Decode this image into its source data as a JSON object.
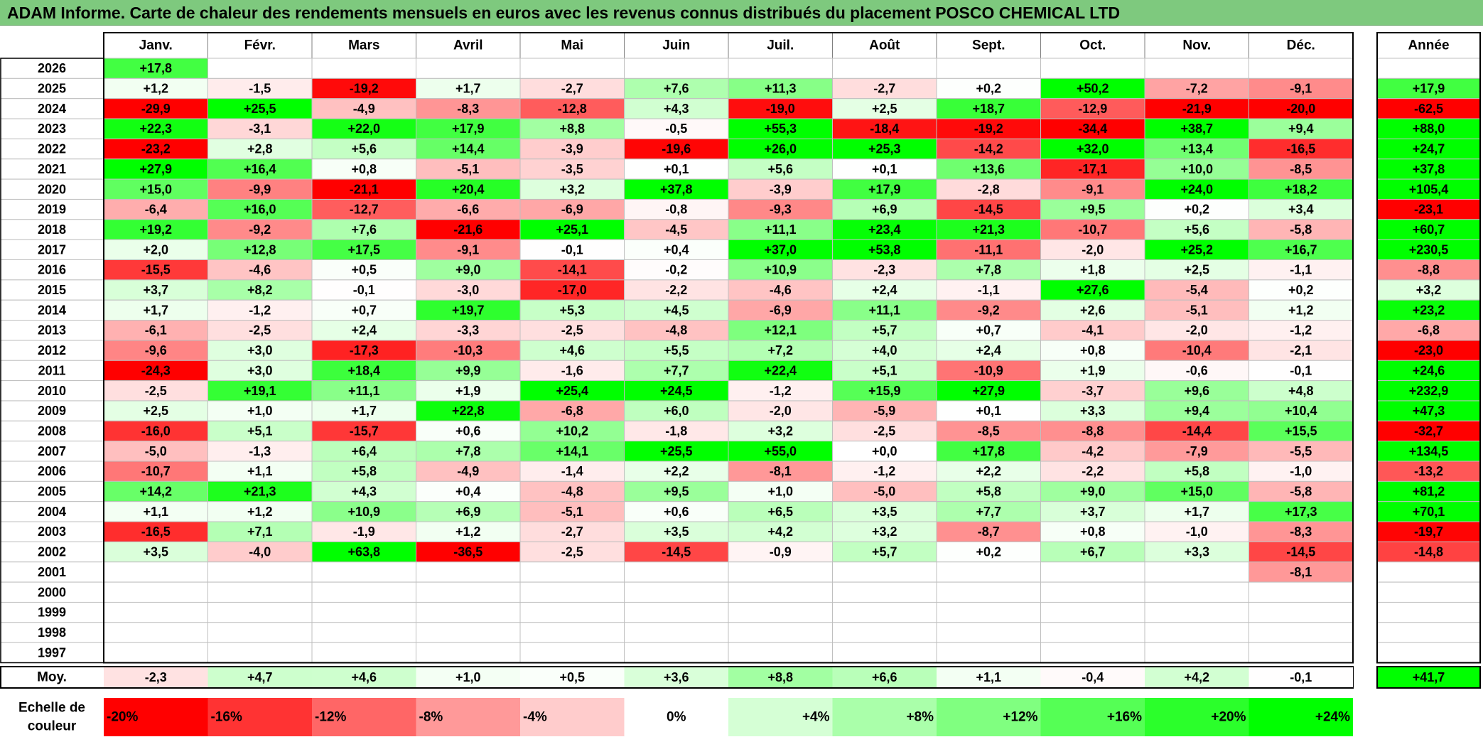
{
  "title": "ADAM Informe. Carte de chaleur des rendements mensuels en euros avec les revenus connus distribués du placement POSCO CHEMICAL LTD",
  "chart_data": {
    "type": "heatmap",
    "months": [
      "Janv.",
      "Févr.",
      "Mars",
      "Avril",
      "Mai",
      "Juin",
      "Juil.",
      "Août",
      "Sept.",
      "Oct.",
      "Nov.",
      "Déc."
    ],
    "year_header": "Année",
    "average_label": "Moy.",
    "scale_label": "Echelle de couleur",
    "rows": [
      {
        "year": "2026",
        "values": [
          "+17,8",
          "",
          "",
          "",
          "",
          "",
          "",
          "",
          "",
          "",
          "",
          ""
        ],
        "annual": ""
      },
      {
        "year": "2025",
        "values": [
          "+1,2",
          "-1,5",
          "-19,2",
          "+1,7",
          "-2,7",
          "+7,6",
          "+11,3",
          "-2,7",
          "+0,2",
          "+50,2",
          "-7,2",
          "-9,1"
        ],
        "annual": "+17,9"
      },
      {
        "year": "2024",
        "values": [
          "-29,9",
          "+25,5",
          "-4,9",
          "-8,3",
          "-12,8",
          "+4,3",
          "-19,0",
          "+2,5",
          "+18,7",
          "-12,9",
          "-21,9",
          "-20,0"
        ],
        "annual": "-62,5"
      },
      {
        "year": "2023",
        "values": [
          "+22,3",
          "-3,1",
          "+22,0",
          "+17,9",
          "+8,8",
          "-0,5",
          "+55,3",
          "-18,4",
          "-19,2",
          "-34,4",
          "+38,7",
          "+9,4"
        ],
        "annual": "+88,0"
      },
      {
        "year": "2022",
        "values": [
          "-23,2",
          "+2,8",
          "+5,6",
          "+14,4",
          "-3,9",
          "-19,6",
          "+26,0",
          "+25,3",
          "-14,2",
          "+32,0",
          "+13,4",
          "-16,5"
        ],
        "annual": "+24,7"
      },
      {
        "year": "2021",
        "values": [
          "+27,9",
          "+16,4",
          "+0,8",
          "-5,1",
          "-3,5",
          "+0,1",
          "+5,6",
          "+0,1",
          "+13,6",
          "-17,1",
          "+10,0",
          "-8,5"
        ],
        "annual": "+37,8"
      },
      {
        "year": "2020",
        "values": [
          "+15,0",
          "-9,9",
          "-21,1",
          "+20,4",
          "+3,2",
          "+37,8",
          "-3,9",
          "+17,9",
          "-2,8",
          "-9,1",
          "+24,0",
          "+18,2"
        ],
        "annual": "+105,4"
      },
      {
        "year": "2019",
        "values": [
          "-6,4",
          "+16,0",
          "-12,7",
          "-6,6",
          "-6,9",
          "-0,8",
          "-9,3",
          "+6,9",
          "-14,5",
          "+9,5",
          "+0,2",
          "+3,4"
        ],
        "annual": "-23,1"
      },
      {
        "year": "2018",
        "values": [
          "+19,2",
          "-9,2",
          "+7,6",
          "-21,6",
          "+25,1",
          "-4,5",
          "+11,1",
          "+23,4",
          "+21,3",
          "-10,7",
          "+5,6",
          "-5,8"
        ],
        "annual": "+60,7"
      },
      {
        "year": "2017",
        "values": [
          "+2,0",
          "+12,8",
          "+17,5",
          "-9,1",
          "-0,1",
          "+0,4",
          "+37,0",
          "+53,8",
          "-11,1",
          "-2,0",
          "+25,2",
          "+16,7"
        ],
        "annual": "+230,5"
      },
      {
        "year": "2016",
        "values": [
          "-15,5",
          "-4,6",
          "+0,5",
          "+9,0",
          "-14,1",
          "-0,2",
          "+10,9",
          "-2,3",
          "+7,8",
          "+1,8",
          "+2,5",
          "-1,1"
        ],
        "annual": "-8,8"
      },
      {
        "year": "2015",
        "values": [
          "+3,7",
          "+8,2",
          "-0,1",
          "-3,0",
          "-17,0",
          "-2,2",
          "-4,6",
          "+2,4",
          "-1,1",
          "+27,6",
          "-5,4",
          "+0,2"
        ],
        "annual": "+3,2"
      },
      {
        "year": "2014",
        "values": [
          "+1,7",
          "-1,2",
          "+0,7",
          "+19,7",
          "+5,3",
          "+4,5",
          "-6,9",
          "+11,1",
          "-9,2",
          "+2,6",
          "-5,1",
          "+1,2"
        ],
        "annual": "+23,2"
      },
      {
        "year": "2013",
        "values": [
          "-6,1",
          "-2,5",
          "+2,4",
          "-3,3",
          "-2,5",
          "-4,8",
          "+12,1",
          "+5,7",
          "+0,7",
          "-4,1",
          "-2,0",
          "-1,2"
        ],
        "annual": "-6,8"
      },
      {
        "year": "2012",
        "values": [
          "-9,6",
          "+3,0",
          "-17,3",
          "-10,3",
          "+4,6",
          "+5,5",
          "+7,2",
          "+4,0",
          "+2,4",
          "+0,8",
          "-10,4",
          "-2,1"
        ],
        "annual": "-23,0"
      },
      {
        "year": "2011",
        "values": [
          "-24,3",
          "+3,0",
          "+18,4",
          "+9,9",
          "-1,6",
          "+7,7",
          "+22,4",
          "+5,1",
          "-10,9",
          "+1,9",
          "-0,6",
          "-0,1"
        ],
        "annual": "+24,6"
      },
      {
        "year": "2010",
        "values": [
          "-2,5",
          "+19,1",
          "+11,1",
          "+1,9",
          "+25,4",
          "+24,5",
          "-1,2",
          "+15,9",
          "+27,9",
          "-3,7",
          "+9,6",
          "+4,8"
        ],
        "annual": "+232,9"
      },
      {
        "year": "2009",
        "values": [
          "+2,5",
          "+1,0",
          "+1,7",
          "+22,8",
          "-6,8",
          "+6,0",
          "-2,0",
          "-5,9",
          "+0,1",
          "+3,3",
          "+9,4",
          "+10,4"
        ],
        "annual": "+47,3"
      },
      {
        "year": "2008",
        "values": [
          "-16,0",
          "+5,1",
          "-15,7",
          "+0,6",
          "+10,2",
          "-1,8",
          "+3,2",
          "-2,5",
          "-8,5",
          "-8,8",
          "-14,4",
          "+15,5"
        ],
        "annual": "-32,7"
      },
      {
        "year": "2007",
        "values": [
          "-5,0",
          "-1,3",
          "+6,4",
          "+7,8",
          "+14,1",
          "+25,5",
          "+55,0",
          "+0,0",
          "+17,8",
          "-4,2",
          "-7,9",
          "-5,5"
        ],
        "annual": "+134,5"
      },
      {
        "year": "2006",
        "values": [
          "-10,7",
          "+1,1",
          "+5,8",
          "-4,9",
          "-1,4",
          "+2,2",
          "-8,1",
          "-1,2",
          "+2,2",
          "-2,2",
          "+5,8",
          "-1,0"
        ],
        "annual": "-13,2"
      },
      {
        "year": "2005",
        "values": [
          "+14,2",
          "+21,3",
          "+4,3",
          "+0,4",
          "-4,8",
          "+9,5",
          "+1,0",
          "-5,0",
          "+5,8",
          "+9,0",
          "+15,0",
          "-5,8"
        ],
        "annual": "+81,2"
      },
      {
        "year": "2004",
        "values": [
          "+1,1",
          "+1,2",
          "+10,9",
          "+6,9",
          "-5,1",
          "+0,6",
          "+6,5",
          "+3,5",
          "+7,7",
          "+3,7",
          "+1,7",
          "+17,3"
        ],
        "annual": "+70,1"
      },
      {
        "year": "2003",
        "values": [
          "-16,5",
          "+7,1",
          "-1,9",
          "+1,2",
          "-2,7",
          "+3,5",
          "+4,2",
          "+3,2",
          "-8,7",
          "+0,8",
          "-1,0",
          "-8,3"
        ],
        "annual": "-19,7"
      },
      {
        "year": "2002",
        "values": [
          "+3,5",
          "-4,0",
          "+63,8",
          "-36,5",
          "-2,5",
          "-14,5",
          "-0,9",
          "+5,7",
          "+0,2",
          "+6,7",
          "+3,3",
          "-14,5"
        ],
        "annual": "-14,8"
      },
      {
        "year": "2001",
        "values": [
          "",
          "",
          "",
          "",
          "",
          "",
          "",
          "",
          "",
          "",
          "",
          "-8,1"
        ],
        "annual": ""
      },
      {
        "year": "2000",
        "values": [
          "",
          "",
          "",
          "",
          "",
          "",
          "",
          "",
          "",
          "",
          "",
          ""
        ],
        "annual": ""
      },
      {
        "year": "1999",
        "values": [
          "",
          "",
          "",
          "",
          "",
          "",
          "",
          "",
          "",
          "",
          "",
          ""
        ],
        "annual": ""
      },
      {
        "year": "1998",
        "values": [
          "",
          "",
          "",
          "",
          "",
          "",
          "",
          "",
          "",
          "",
          "",
          ""
        ],
        "annual": ""
      },
      {
        "year": "1997",
        "values": [
          "",
          "",
          "",
          "",
          "",
          "",
          "",
          "",
          "",
          "",
          "",
          ""
        ],
        "annual": ""
      }
    ],
    "average": {
      "values": [
        "-2,3",
        "+4,7",
        "+4,6",
        "+1,0",
        "+0,5",
        "+3,6",
        "+8,8",
        "+6,6",
        "+1,1",
        "-0,4",
        "+4,2",
        "-0,1"
      ],
      "annual": "+41,7"
    },
    "color_scale": [
      "-20%",
      "-16%",
      "-12%",
      "-8%",
      "-4%",
      "0%",
      "+4%",
      "+8%",
      "+12%",
      "+16%",
      "+20%",
      "+24%"
    ],
    "colors": {
      "negative_max": "#ff0000",
      "neutral": "#ffffff",
      "positive_max": "#00ff00",
      "title_bar": "#7ec97e"
    }
  }
}
